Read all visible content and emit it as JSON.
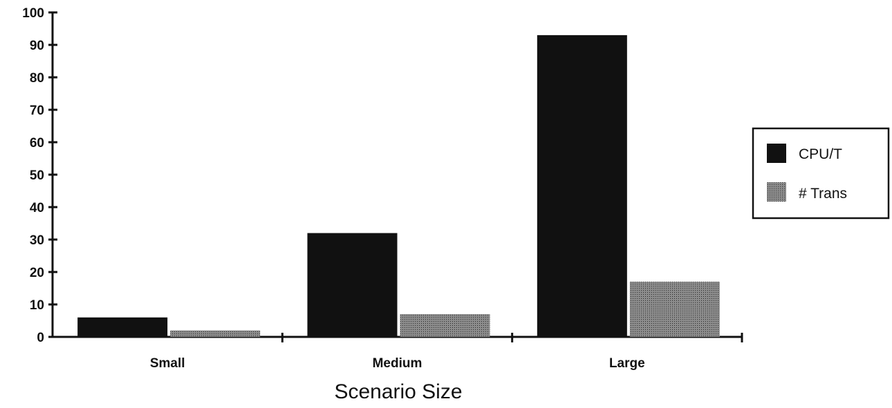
{
  "colors": {
    "cpu": "#111111",
    "trans_base": "#8c8c8c",
    "trans_dot": "#2a2a2a",
    "axis": "#111111"
  },
  "chart_data": {
    "type": "bar",
    "categories": [
      "Small",
      "Medium",
      "Large"
    ],
    "series": [
      {
        "name": "CPU/T",
        "values": [
          6,
          32,
          93
        ]
      },
      {
        "name": "# Trans",
        "values": [
          2,
          7,
          17
        ]
      }
    ],
    "xlabel": "Scenario Size",
    "ylabel": "",
    "ylim": [
      0,
      100
    ],
    "yticks": [
      0,
      10,
      20,
      30,
      40,
      50,
      60,
      70,
      80,
      90,
      100
    ],
    "grid": false,
    "legend_position": "right"
  }
}
